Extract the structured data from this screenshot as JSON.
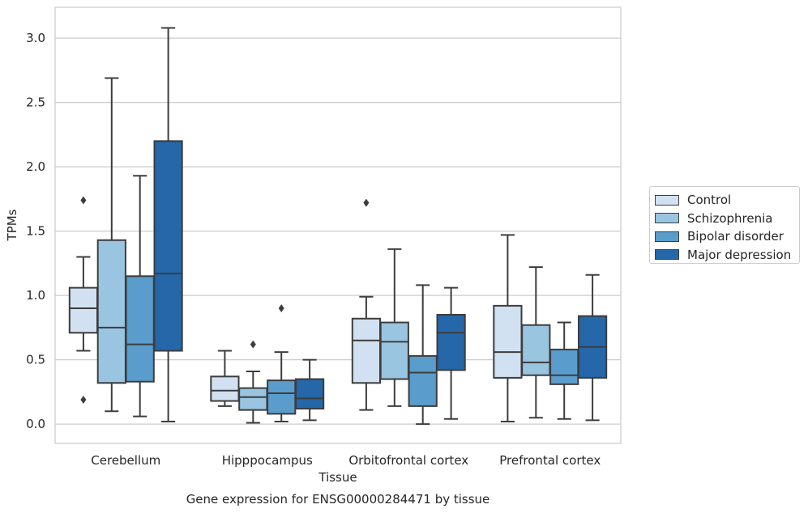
{
  "chart_data": {
    "type": "box",
    "title": "Gene expression for ENSG00000284471 by tissue",
    "xlabel": "Tissue",
    "ylabel": "TPMs",
    "ylim": [
      -0.15,
      3.24
    ],
    "yticks": [
      "0.0",
      "0.5",
      "1.0",
      "1.5",
      "2.0",
      "2.5",
      "3.0"
    ],
    "grid": "horizontal",
    "legend_position": "right",
    "categories": [
      "Cerebellum",
      "Hipppocampus",
      "Orbitofrontal cortex",
      "Prefrontal cortex"
    ],
    "series": [
      {
        "name": "Control",
        "color": "#d1e1f1",
        "boxes": [
          {
            "whislo": 0.57,
            "q1": 0.71,
            "med": 0.9,
            "q3": 1.06,
            "whishi": 1.3,
            "fliers": [
              1.74,
              0.19
            ]
          },
          {
            "whislo": 0.14,
            "q1": 0.18,
            "med": 0.26,
            "q3": 0.37,
            "whishi": 0.57,
            "fliers": []
          },
          {
            "whislo": 0.11,
            "q1": 0.32,
            "med": 0.65,
            "q3": 0.82,
            "whishi": 0.99,
            "fliers": [
              1.72
            ]
          },
          {
            "whislo": 0.02,
            "q1": 0.36,
            "med": 0.56,
            "q3": 0.92,
            "whishi": 1.47,
            "fliers": []
          }
        ]
      },
      {
        "name": "Schizophrenia",
        "color": "#9ac5e0",
        "boxes": [
          {
            "whislo": 0.1,
            "q1": 0.32,
            "med": 0.75,
            "q3": 1.43,
            "whishi": 2.69,
            "fliers": []
          },
          {
            "whislo": 0.01,
            "q1": 0.11,
            "med": 0.21,
            "q3": 0.28,
            "whishi": 0.41,
            "fliers": [
              0.62
            ]
          },
          {
            "whislo": 0.14,
            "q1": 0.35,
            "med": 0.64,
            "q3": 0.79,
            "whishi": 1.36,
            "fliers": []
          },
          {
            "whislo": 0.05,
            "q1": 0.38,
            "med": 0.48,
            "q3": 0.77,
            "whishi": 1.22,
            "fliers": []
          }
        ]
      },
      {
        "name": "Bipolar disorder",
        "color": "#5a9ccb",
        "boxes": [
          {
            "whislo": 0.06,
            "q1": 0.33,
            "med": 0.62,
            "q3": 1.15,
            "whishi": 1.93,
            "fliers": []
          },
          {
            "whislo": 0.02,
            "q1": 0.08,
            "med": 0.24,
            "q3": 0.34,
            "whishi": 0.56,
            "fliers": [
              0.9
            ]
          },
          {
            "whislo": 0.0,
            "q1": 0.14,
            "med": 0.4,
            "q3": 0.53,
            "whishi": 1.08,
            "fliers": []
          },
          {
            "whislo": 0.04,
            "q1": 0.31,
            "med": 0.38,
            "q3": 0.58,
            "whishi": 0.79,
            "fliers": []
          }
        ]
      },
      {
        "name": "Major depression",
        "color": "#2567a9",
        "boxes": [
          {
            "whislo": 0.02,
            "q1": 0.57,
            "med": 1.17,
            "q3": 2.2,
            "whishi": 3.08,
            "fliers": []
          },
          {
            "whislo": 0.03,
            "q1": 0.12,
            "med": 0.2,
            "q3": 0.35,
            "whishi": 0.5,
            "fliers": []
          },
          {
            "whislo": 0.04,
            "q1": 0.42,
            "med": 0.71,
            "q3": 0.85,
            "whishi": 1.06,
            "fliers": []
          },
          {
            "whislo": 0.03,
            "q1": 0.36,
            "med": 0.6,
            "q3": 0.84,
            "whishi": 1.16,
            "fliers": []
          }
        ]
      }
    ]
  }
}
